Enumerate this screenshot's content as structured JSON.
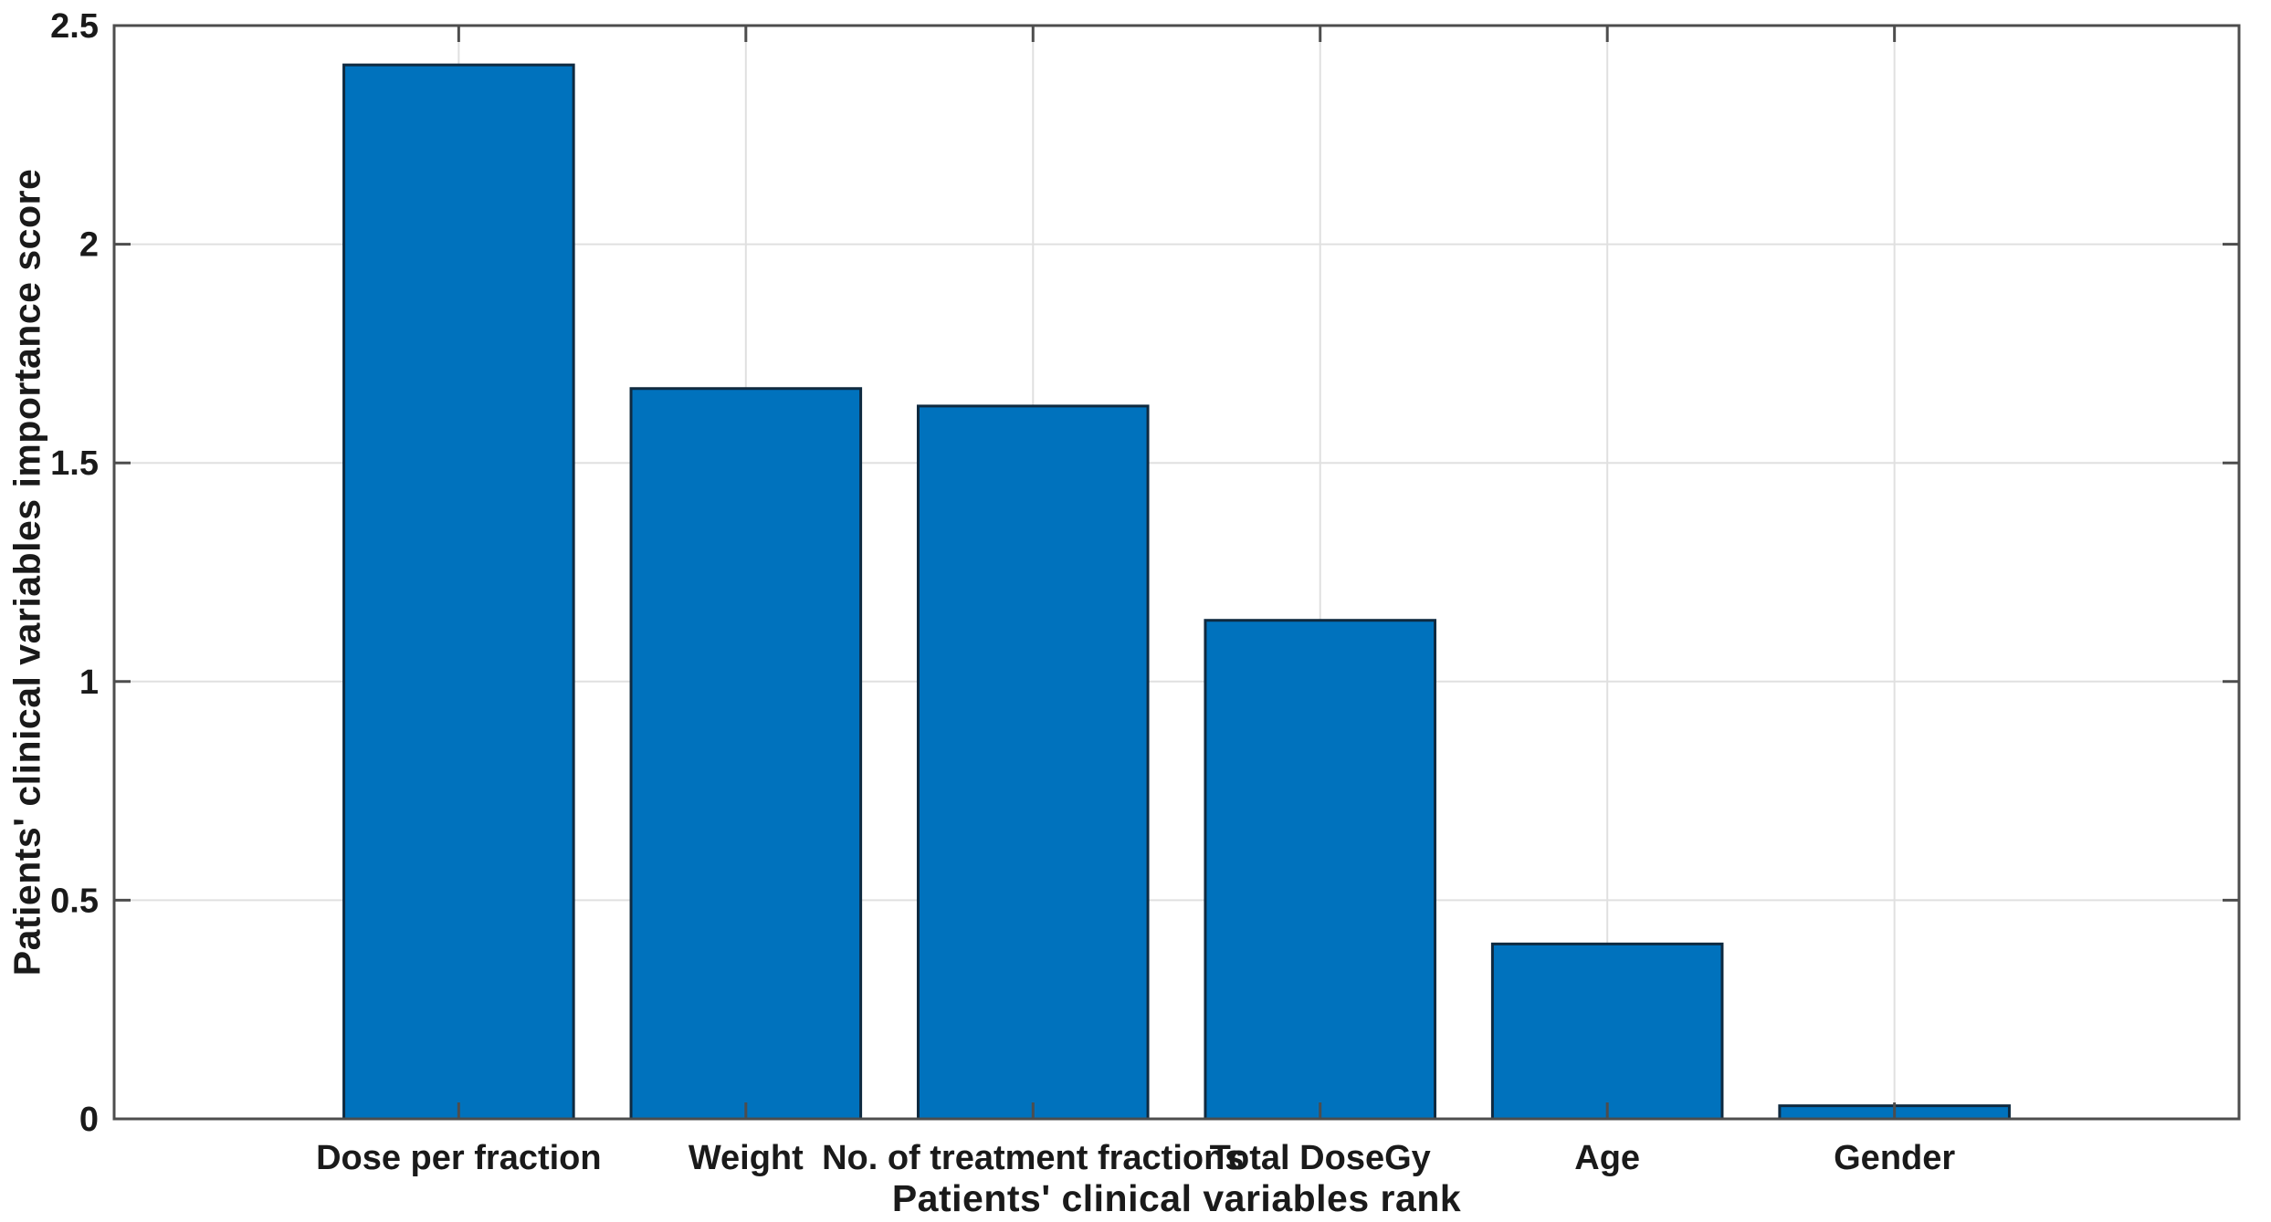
{
  "figure": {
    "background": "#ffffff"
  },
  "chart_data": {
    "type": "bar",
    "title": "",
    "xlabel": "Patients' clinical variables rank",
    "ylabel": "Patients' clinical variables importance score",
    "categories": [
      "Dose per fraction",
      "Weight",
      "No. of treatment fractions",
      "Total DoseGy",
      "Age",
      "Gender"
    ],
    "values": [
      2.41,
      1.67,
      1.63,
      1.14,
      0.4,
      0.03
    ],
    "ylim": [
      0,
      2.5
    ],
    "xlim": [
      -0.2,
      7.2
    ],
    "yticks": [
      0,
      0.5,
      1,
      1.5,
      2,
      2.5
    ],
    "ytick_labels": [
      "0",
      "0.5",
      "1",
      "1.5",
      "2",
      "2.5"
    ],
    "grid": "on",
    "legend": "none",
    "bar_color": "#0072BD",
    "bar_edge_color": "#0f2a40",
    "axis_color": "#4d4d4d",
    "grid_color": "#e0e0e0",
    "text_color": "#1a1a1a"
  }
}
